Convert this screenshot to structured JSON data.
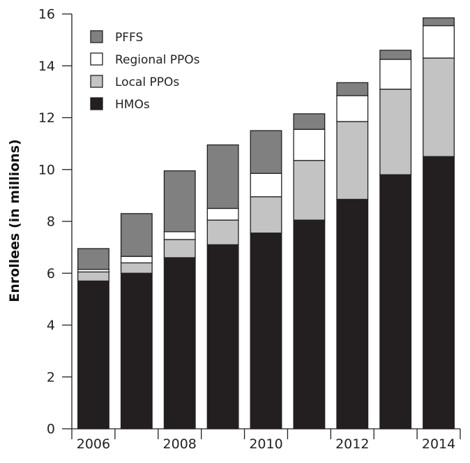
{
  "chart_data": {
    "type": "bar",
    "stacked": true,
    "ylabel": "Enrollees (in millions)",
    "xlabel": "",
    "ylim": [
      0,
      16
    ],
    "yticks": [
      0,
      2,
      4,
      6,
      8,
      10,
      12,
      14,
      16
    ],
    "xtick_labels": [
      "2006",
      "2008",
      "2010",
      "2012",
      "2014"
    ],
    "categories": [
      "2006",
      "2007",
      "2008",
      "2009",
      "2010",
      "2011",
      "2012",
      "2013",
      "2014"
    ],
    "legend_position": "top-left",
    "grid": false,
    "series": [
      {
        "name": "HMOs",
        "color": "#231f20",
        "values": [
          5.7,
          6.0,
          6.6,
          7.1,
          7.55,
          8.05,
          8.85,
          9.8,
          10.5
        ]
      },
      {
        "name": "Local PPOs",
        "color": "#c3c3c3",
        "values": [
          0.35,
          0.4,
          0.7,
          0.95,
          1.4,
          2.3,
          3.0,
          3.3,
          3.8
        ]
      },
      {
        "name": "Regional PPOs",
        "color": "#ffffff",
        "values": [
          0.1,
          0.25,
          0.3,
          0.45,
          0.9,
          1.2,
          1.0,
          1.15,
          1.25
        ]
      },
      {
        "name": "PFFS",
        "color": "#808080",
        "values": [
          0.8,
          1.65,
          2.35,
          2.45,
          1.65,
          0.6,
          0.5,
          0.35,
          0.3
        ]
      }
    ],
    "legend_order": [
      "PFFS",
      "Regional PPOs",
      "Local PPOs",
      "HMOs"
    ]
  }
}
